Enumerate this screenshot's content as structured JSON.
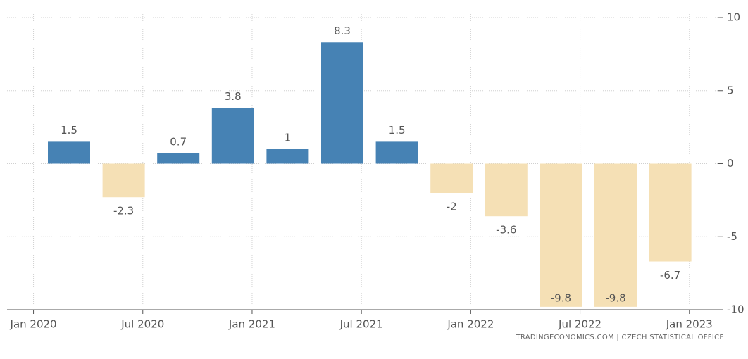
{
  "chart_data": {
    "type": "bar",
    "categories": [
      null,
      null,
      null,
      null,
      null,
      null,
      null,
      null,
      null,
      null,
      null,
      null
    ],
    "values": [
      1.5,
      -2.3,
      0.7,
      3.8,
      1,
      8.3,
      1.5,
      -2,
      -3.6,
      -9.8,
      -9.8,
      -6.7
    ],
    "positive_color": "#4682b4",
    "negative_color": "#f5e0b5",
    "xtick_labels": [
      "Jan 2020",
      "Jul 2020",
      "Jan 2021",
      "Jul 2021",
      "Jan 2022",
      "Jul 2022",
      "Jan 2023"
    ],
    "ylim": [
      -10,
      10
    ],
    "yticks": [
      -10,
      -5,
      0,
      5,
      10
    ],
    "grid": true,
    "source": "TRADINGECONOMICS.COM  |  CZECH STATISTICAL OFFICE"
  }
}
